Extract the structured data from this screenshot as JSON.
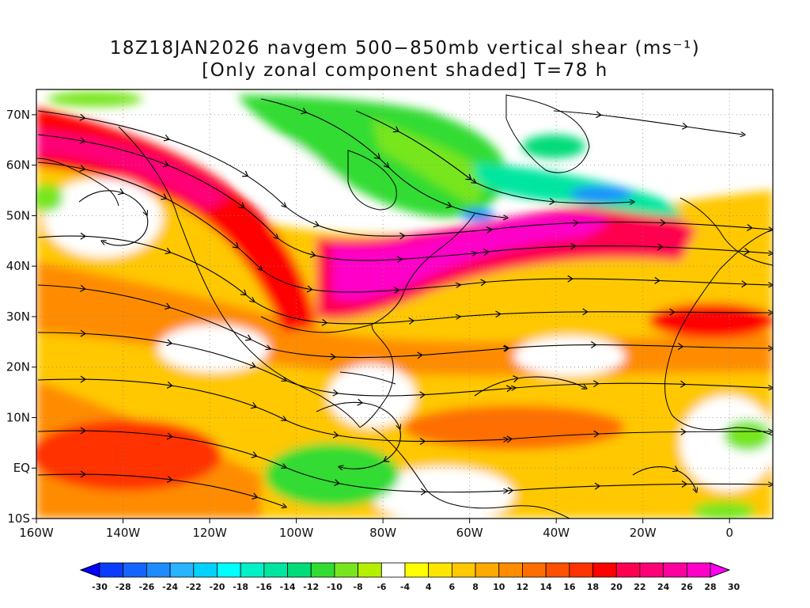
{
  "title": {
    "line1": "18Z18JAN2026 navgem 500−850mb vertical shear (ms⁻¹)",
    "line2": "[Only zonal component shaded] T=78 h"
  },
  "map": {
    "lon_range": [
      -160,
      10
    ],
    "lat_range": [
      -10,
      75
    ],
    "lat_labels": [
      "10S",
      "EQ",
      "10N",
      "20N",
      "30N",
      "40N",
      "50N",
      "60N",
      "70N"
    ],
    "lon_labels": [
      "160W",
      "140W",
      "120W",
      "100W",
      "80W",
      "60W",
      "40W",
      "20W",
      "0"
    ],
    "gridlines": "dotted"
  },
  "colorbar": {
    "units": "ms-1",
    "levels": [
      "-30",
      "-28",
      "-26",
      "-24",
      "-22",
      "-20",
      "-18",
      "-16",
      "-14",
      "-12",
      "-10",
      "-8",
      "-6",
      "-4",
      "4",
      "6",
      "8",
      "10",
      "12",
      "14",
      "16",
      "18",
      "20",
      "22",
      "24",
      "26",
      "28",
      "30"
    ],
    "colors": [
      "#0000ff",
      "#0a3cff",
      "#1464ff",
      "#1e8cff",
      "#28b4ff",
      "#00d2ff",
      "#00ffff",
      "#00f0c8",
      "#00e6a0",
      "#00dc78",
      "#32dc32",
      "#78e61e",
      "#b4f000",
      "#ffffff",
      "#ffff00",
      "#ffe600",
      "#ffc800",
      "#ffaa00",
      "#ff8c00",
      "#ff6e00",
      "#ff5000",
      "#ff3200",
      "#ff0000",
      "#ff0050",
      "#ff0078",
      "#ff00a0",
      "#ff00c8",
      "#ff00f0"
    ]
  }
}
